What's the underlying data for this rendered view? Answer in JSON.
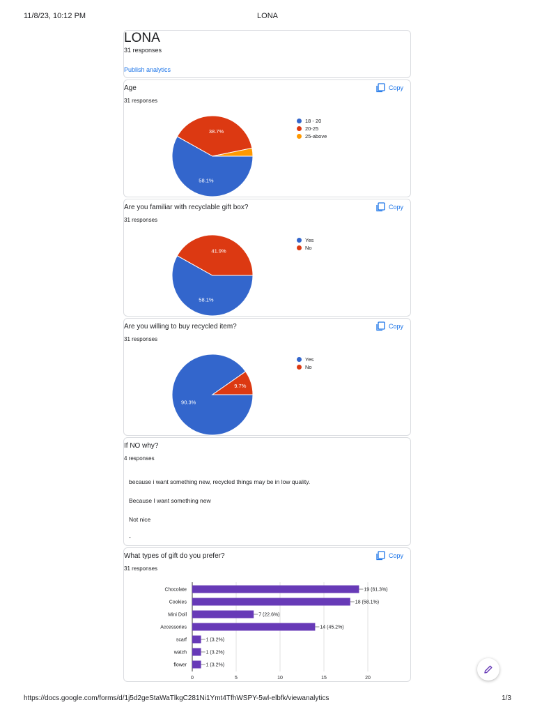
{
  "print_header": {
    "datetime": "11/8/23, 10:12 PM",
    "title": "LONA"
  },
  "print_footer": {
    "url": "https://docs.google.com/forms/d/1j5d2geStaWaTlkgC281Ni1Ymt4TfhWSPY-5wl-elbfk/viewanalytics",
    "page": "1/3"
  },
  "form": {
    "title": "LONA",
    "responses": "31 responses",
    "publish_link": "Publish analytics"
  },
  "copy_label": "Copy",
  "colors": {
    "blue": "#3366cc",
    "red": "#dc3912",
    "orange": "#ff9900",
    "purple": "#673ab7",
    "link": "#1a73e8"
  },
  "questions": {
    "age": {
      "title": "Age",
      "responses": "31 responses",
      "legend": [
        "18 - 20",
        "20-25",
        "25-above"
      ],
      "slice_labels": [
        "58.1%",
        "38.7%"
      ]
    },
    "familiar": {
      "title": "Are you familiar with recyclable gift box?",
      "responses": "31 responses",
      "legend": [
        "Yes",
        "No"
      ],
      "slice_labels": [
        "58.1%",
        "41.9%"
      ]
    },
    "willing": {
      "title": "Are you willing to buy recycled item?",
      "responses": "31 responses",
      "legend": [
        "Yes",
        "No"
      ],
      "slice_labels": [
        "90.3%",
        "9.7%"
      ]
    },
    "why": {
      "title": "If NO why?",
      "responses": "4 responses",
      "answers": [
        "because i want something new, recycled things may be in low quality.",
        "Because I want something new",
        "Not nice",
        "-"
      ]
    },
    "gift": {
      "title": "What types of gift do you prefer?",
      "responses": "31 responses",
      "bar_labels": [
        "19 (61.3%)",
        "18 (58.1%)",
        "7 (22.6%)",
        "14 (45.2%)",
        "1 (3.2%)",
        "1 (3.2%)",
        "1 (3.2%)"
      ],
      "ticks": [
        "0",
        "5",
        "10",
        "15",
        "20"
      ]
    }
  },
  "chart_data": [
    {
      "type": "pie",
      "title": "Age",
      "categories": [
        "18 - 20",
        "20-25",
        "25-above"
      ],
      "values": [
        58.1,
        38.7,
        3.2
      ],
      "legend": "right"
    },
    {
      "type": "pie",
      "title": "Are you familiar with recyclable gift box?",
      "categories": [
        "Yes",
        "No"
      ],
      "values": [
        58.1,
        41.9
      ],
      "legend": "right"
    },
    {
      "type": "pie",
      "title": "Are you willing to buy recycled item?",
      "categories": [
        "Yes",
        "No"
      ],
      "values": [
        90.3,
        9.7
      ],
      "legend": "right"
    },
    {
      "type": "bar",
      "title": "What types of gift do you prefer?",
      "categories": [
        "Chocolate",
        "Cookies",
        "Mini Doll",
        "Accessories",
        "scarf",
        "watch",
        "flower"
      ],
      "values": [
        19,
        18,
        7,
        14,
        1,
        1,
        1
      ],
      "xlim": [
        0,
        20
      ],
      "grid": true
    }
  ]
}
